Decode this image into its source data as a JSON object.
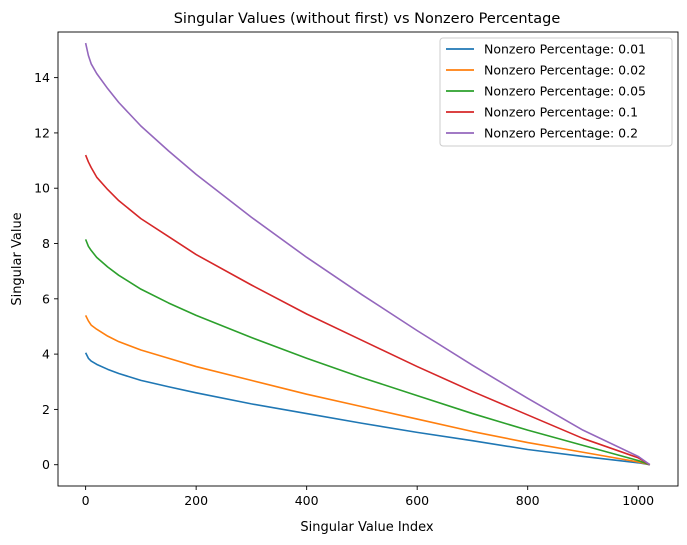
{
  "chart_data": {
    "type": "line",
    "title": "Singular Values (without first) vs Nonzero Percentage",
    "xlabel": "Singular Value Index",
    "ylabel": "Singular Value",
    "xlim": [
      -50,
      1072
    ],
    "ylim": [
      -0.77,
      15.65
    ],
    "xticks": [
      0,
      200,
      400,
      600,
      800,
      1000
    ],
    "yticks": [
      0,
      2,
      4,
      6,
      8,
      10,
      12,
      14
    ],
    "grid": false,
    "legend_position": "top-right",
    "series": [
      {
        "name": "Nonzero Percentage: 0.01",
        "color": "#1f77b4",
        "x": [
          0,
          5,
          10,
          20,
          40,
          60,
          100,
          150,
          200,
          300,
          400,
          500,
          600,
          700,
          800,
          900,
          1000,
          1021
        ],
        "y": [
          4.05,
          3.85,
          3.75,
          3.63,
          3.45,
          3.3,
          3.05,
          2.82,
          2.6,
          2.2,
          1.85,
          1.5,
          1.17,
          0.87,
          0.55,
          0.3,
          0.07,
          0.0
        ]
      },
      {
        "name": "Nonzero Percentage: 0.02",
        "color": "#ff7f0e",
        "x": [
          0,
          5,
          10,
          20,
          40,
          60,
          100,
          150,
          200,
          300,
          400,
          500,
          600,
          700,
          800,
          900,
          1000,
          1021
        ],
        "y": [
          5.4,
          5.2,
          5.05,
          4.9,
          4.65,
          4.45,
          4.15,
          3.85,
          3.55,
          3.05,
          2.55,
          2.1,
          1.65,
          1.2,
          0.8,
          0.45,
          0.1,
          0.0
        ]
      },
      {
        "name": "Nonzero Percentage: 0.05",
        "color": "#2ca02c",
        "x": [
          0,
          5,
          10,
          20,
          40,
          60,
          100,
          150,
          200,
          300,
          400,
          500,
          600,
          700,
          800,
          900,
          1000,
          1021
        ],
        "y": [
          8.15,
          7.9,
          7.75,
          7.5,
          7.15,
          6.85,
          6.35,
          5.85,
          5.4,
          4.6,
          3.85,
          3.15,
          2.5,
          1.85,
          1.25,
          0.7,
          0.15,
          0.0
        ]
      },
      {
        "name": "Nonzero Percentage: 0.1",
        "color": "#d62728",
        "x": [
          0,
          5,
          10,
          20,
          40,
          60,
          100,
          150,
          200,
          300,
          400,
          500,
          600,
          700,
          800,
          900,
          1000,
          1021
        ],
        "y": [
          11.2,
          10.95,
          10.75,
          10.4,
          9.95,
          9.55,
          8.9,
          8.25,
          7.6,
          6.5,
          5.45,
          4.5,
          3.55,
          2.65,
          1.8,
          0.95,
          0.25,
          0.0
        ]
      },
      {
        "name": "Nonzero Percentage: 0.2",
        "color": "#9467bd",
        "x": [
          0,
          5,
          10,
          20,
          40,
          60,
          100,
          150,
          200,
          300,
          400,
          500,
          600,
          700,
          800,
          900,
          1000,
          1021
        ],
        "y": [
          15.25,
          14.8,
          14.5,
          14.15,
          13.6,
          13.1,
          12.25,
          11.35,
          10.5,
          8.95,
          7.5,
          6.15,
          4.85,
          3.6,
          2.4,
          1.25,
          0.3,
          0.0
        ]
      }
    ]
  }
}
